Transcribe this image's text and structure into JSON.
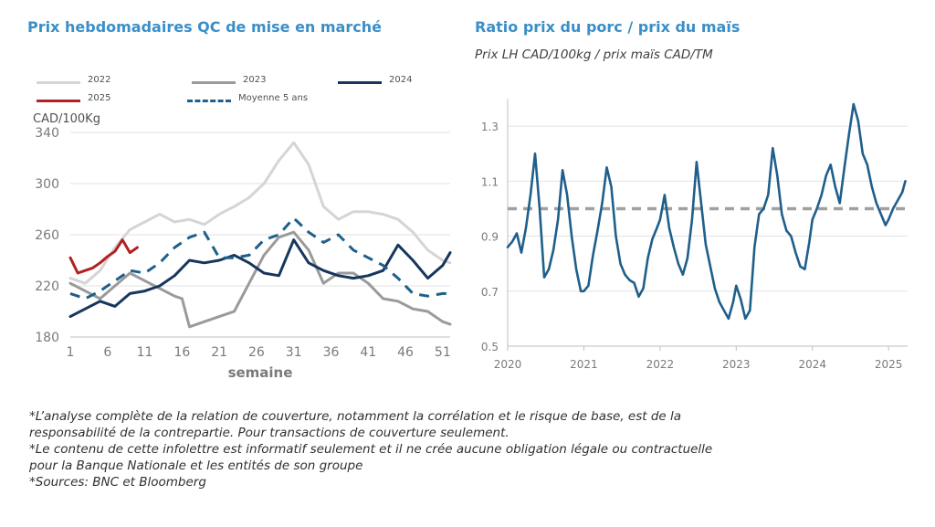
{
  "left": {
    "title": "Prix hebdomadaires QC de mise en marché",
    "unit_label": "CAD/100Kg"
  },
  "right": {
    "title": "Ratio prix du porc / prix du maïs",
    "subtitle": "Prix LH CAD/100kg / prix maïs CAD/TM"
  },
  "footnotes": [
    "*L’analyse complète de la relation de couverture, notamment la corrélation et le risque de base, est de la",
    "responsabilité de la contrepartie. Pour transactions de couverture seulement.",
    "*Le contenu de cette infolettre est informatif seulement et il ne crée aucune obligation légale ou contractuelle",
    "pour la Banque Nationale et les entités de son groupe",
    "*Sources: BNC et Bloomberg"
  ],
  "colors": {
    "title": "#3a8fc8",
    "s2022": "#d5d5d5",
    "s2023": "#9a9a9a",
    "s2024": "#17365d",
    "s2025": "#b22222",
    "avg5": "#1f5f8b",
    "ratio": "#1f5f8b",
    "ref_line": "#a0a0a0"
  },
  "chart_data": [
    {
      "type": "line",
      "title": "Prix hebdomadaires QC de mise en marché",
      "xlabel": "semaine",
      "ylabel": "CAD/100Kg",
      "xlim": [
        1,
        52
      ],
      "ylim": [
        180,
        340
      ],
      "xticks": [
        1,
        6,
        11,
        16,
        21,
        26,
        31,
        36,
        41,
        46,
        51
      ],
      "yticks": [
        180,
        220,
        260,
        300,
        340
      ],
      "grid": "horizontal",
      "legend_position": "top",
      "series": [
        {
          "name": "2022",
          "style": "solid",
          "color": "#d5d5d5",
          "x": [
            1,
            3,
            5,
            7,
            9,
            11,
            13,
            15,
            17,
            19,
            21,
            23,
            25,
            27,
            29,
            31,
            33,
            35,
            37,
            39,
            41,
            43,
            45,
            47,
            49,
            51,
            52
          ],
          "values": [
            226,
            222,
            232,
            250,
            264,
            270,
            276,
            270,
            272,
            268,
            276,
            282,
            289,
            300,
            318,
            332,
            315,
            282,
            272,
            278,
            278,
            276,
            272,
            262,
            248,
            240,
            238
          ]
        },
        {
          "name": "2023",
          "style": "solid",
          "color": "#9a9a9a",
          "x": [
            1,
            3,
            5,
            7,
            9,
            11,
            13,
            15,
            16,
            17,
            19,
            21,
            23,
            25,
            27,
            29,
            31,
            33,
            35,
            37,
            39,
            41,
            43,
            45,
            47,
            49,
            51,
            52
          ],
          "values": [
            222,
            216,
            210,
            220,
            230,
            224,
            218,
            212,
            210,
            188,
            192,
            196,
            200,
            222,
            244,
            258,
            262,
            248,
            222,
            230,
            230,
            222,
            210,
            208,
            202,
            200,
            192,
            190
          ]
        },
        {
          "name": "2024",
          "style": "solid",
          "color": "#17365d",
          "x": [
            1,
            3,
            5,
            7,
            9,
            11,
            13,
            15,
            17,
            19,
            21,
            23,
            25,
            27,
            29,
            31,
            33,
            35,
            37,
            39,
            41,
            43,
            45,
            47,
            49,
            51,
            52
          ],
          "values": [
            196,
            202,
            208,
            204,
            214,
            216,
            220,
            228,
            240,
            238,
            240,
            244,
            238,
            230,
            228,
            256,
            238,
            232,
            228,
            226,
            228,
            232,
            252,
            240,
            226,
            236,
            246
          ]
        },
        {
          "name": "2025",
          "style": "solid",
          "color": "#b22222",
          "x": [
            1,
            2,
            3,
            4,
            5,
            6,
            7,
            8,
            9,
            10
          ],
          "values": [
            242,
            230,
            232,
            234,
            238,
            243,
            247,
            256,
            246,
            250
          ]
        },
        {
          "name": "Moyenne 5 ans",
          "style": "dashed",
          "color": "#1f5f8b",
          "x": [
            1,
            3,
            5,
            7,
            9,
            11,
            13,
            15,
            17,
            19,
            21,
            23,
            25,
            27,
            29,
            31,
            33,
            35,
            37,
            39,
            41,
            43,
            45,
            47,
            49,
            51,
            52
          ],
          "values": [
            214,
            210,
            216,
            224,
            232,
            230,
            238,
            250,
            258,
            262,
            242,
            242,
            244,
            256,
            260,
            273,
            262,
            254,
            260,
            248,
            242,
            236,
            226,
            214,
            212,
            214,
            214
          ]
        }
      ]
    },
    {
      "type": "line",
      "title": "Ratio prix du porc / prix du maïs",
      "subtitle": "Prix LH CAD/100kg / prix maïs CAD/TM",
      "xlim": [
        2020,
        2025.25
      ],
      "ylim": [
        0.5,
        1.4
      ],
      "xticks": [
        2020,
        2021,
        2022,
        2023,
        2024,
        2025
      ],
      "yticks": [
        0.5,
        0.7,
        0.9,
        1.1,
        1.3
      ],
      "grid": "horizontal",
      "reference_line": {
        "y": 1.0,
        "style": "dashed"
      },
      "series": [
        {
          "name": "",
          "color": "#1f5f8b",
          "x": [
            2020.0,
            2020.06,
            2020.12,
            2020.18,
            2020.24,
            2020.3,
            2020.36,
            2020.42,
            2020.48,
            2020.54,
            2020.6,
            2020.66,
            2020.72,
            2020.78,
            2020.84,
            2020.9,
            2020.96,
            2021.0,
            2021.06,
            2021.12,
            2021.18,
            2021.24,
            2021.3,
            2021.36,
            2021.42,
            2021.48,
            2021.54,
            2021.6,
            2021.66,
            2021.72,
            2021.78,
            2021.84,
            2021.9,
            2021.96,
            2022.0,
            2022.06,
            2022.12,
            2022.18,
            2022.24,
            2022.3,
            2022.36,
            2022.42,
            2022.48,
            2022.54,
            2022.6,
            2022.66,
            2022.72,
            2022.78,
            2022.84,
            2022.9,
            2022.96,
            2023.0,
            2023.06,
            2023.12,
            2023.18,
            2023.24,
            2023.3,
            2023.36,
            2023.42,
            2023.48,
            2023.54,
            2023.6,
            2023.66,
            2023.72,
            2023.78,
            2023.84,
            2023.9,
            2023.96,
            2024.0,
            2024.06,
            2024.12,
            2024.18,
            2024.24,
            2024.3,
            2024.36,
            2024.42,
            2024.48,
            2024.54,
            2024.6,
            2024.66,
            2024.72,
            2024.78,
            2024.84,
            2024.9,
            2024.96,
            2025.0,
            2025.06,
            2025.12,
            2025.18,
            2025.22
          ],
          "values": [
            0.86,
            0.88,
            0.91,
            0.84,
            0.93,
            1.05,
            1.2,
            1.0,
            0.75,
            0.78,
            0.85,
            0.96,
            1.14,
            1.05,
            0.9,
            0.78,
            0.7,
            0.7,
            0.72,
            0.83,
            0.92,
            1.02,
            1.15,
            1.08,
            0.9,
            0.8,
            0.76,
            0.74,
            0.73,
            0.68,
            0.71,
            0.82,
            0.89,
            0.93,
            0.96,
            1.05,
            0.93,
            0.86,
            0.8,
            0.76,
            0.82,
            0.96,
            1.17,
            1.02,
            0.87,
            0.79,
            0.71,
            0.66,
            0.63,
            0.6,
            0.66,
            0.72,
            0.67,
            0.6,
            0.63,
            0.86,
            0.98,
            1.0,
            1.05,
            1.22,
            1.12,
            0.98,
            0.92,
            0.9,
            0.84,
            0.79,
            0.78,
            0.88,
            0.96,
            1.0,
            1.05,
            1.12,
            1.16,
            1.08,
            1.02,
            1.15,
            1.27,
            1.38,
            1.32,
            1.2,
            1.16,
            1.08,
            1.02,
            0.98,
            0.94,
            0.96,
            1.0,
            1.03,
            1.06,
            1.1
          ]
        }
      ]
    }
  ]
}
